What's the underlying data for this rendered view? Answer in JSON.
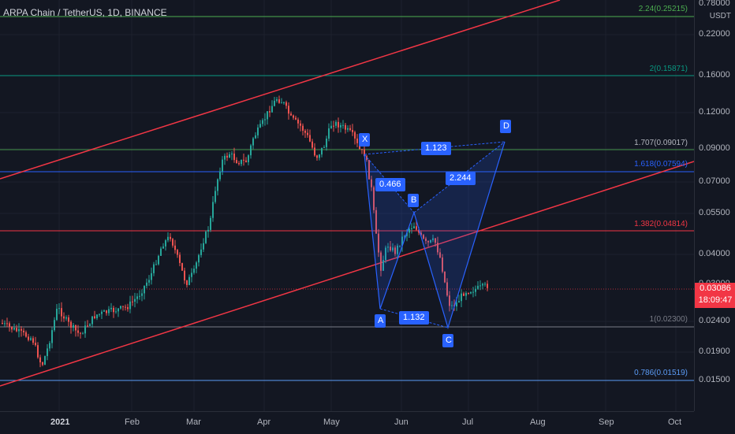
{
  "symbol": {
    "title": "ARPA Chain / TetherUS, 1D, BINANCE"
  },
  "price_axis": {
    "unit": "USDT",
    "ticks": [
      "0.78000",
      "0.22000",
      "0.16000",
      "0.12000",
      "0.09000",
      "0.07000",
      "0.05500",
      "0.04000",
      "0.03000",
      "0.02400",
      "0.01900",
      "0.01500"
    ],
    "last_price": "0.03086",
    "countdown": "18:09:47"
  },
  "time_axis": {
    "ticks": [
      "2021",
      "Feb",
      "Mar",
      "Apr",
      "May",
      "Jun",
      "Jul",
      "Aug",
      "Sep",
      "Oct"
    ]
  },
  "fib_levels": [
    {
      "label": "2.24(0.25215)",
      "color": "#4caf50"
    },
    {
      "label": "2(0.15871)",
      "color": "#089981"
    },
    {
      "label": "1.707(0.09017)",
      "color": "#b2b5be"
    },
    {
      "label": "1.618(0.07594)",
      "color": "#2962ff"
    },
    {
      "label": "1.382(0.04814)",
      "color": "#f23645"
    },
    {
      "label": "1(0.02300)",
      "color": "#787b86"
    },
    {
      "label": "0.786(0.01519)",
      "color": "#5b9cf6"
    }
  ],
  "pattern": {
    "points": [
      "X",
      "A",
      "B",
      "C",
      "D"
    ],
    "ratios": [
      "0.466",
      "1.132",
      "1.123",
      "2.244"
    ],
    "color": "#2962ff"
  },
  "colors": {
    "up": "#26a69a",
    "down": "#ef5350",
    "channel": "#f23645"
  }
}
